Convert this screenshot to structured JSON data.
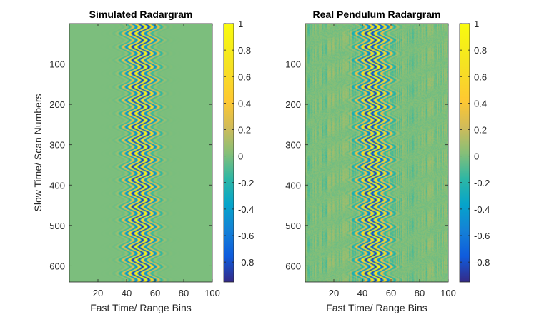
{
  "chart_data": [
    {
      "type": "heatmap",
      "title": "Simulated Radargram",
      "xlabel": "Fast Time/ Range Bins",
      "ylabel": "Slow Time/ Scan Numbers",
      "xlim": [
        0,
        100
      ],
      "ylim": [
        0,
        640
      ],
      "y_direction": "reversed",
      "xticks": [
        "20",
        "40",
        "60",
        "80",
        "100"
      ],
      "yticks": [
        "100",
        "200",
        "300",
        "400",
        "500",
        "600"
      ],
      "colormap": "parula",
      "clim": [
        -0.95,
        1
      ],
      "colorbar_ticks": [
        "1",
        "0.8",
        "0.6",
        "0.4",
        "0.2",
        "0",
        "-0.2",
        "-0.4",
        "-0.6",
        "-0.8"
      ],
      "signal": {
        "center_bin": 50,
        "sway_bins": 3.5,
        "scans_per_cycle": 33,
        "stripe_period_bins": 4.5,
        "envelope_width_bins": 6,
        "background_value": 0,
        "noise": 0
      }
    },
    {
      "type": "heatmap",
      "title": "Real Pendulum Radargram",
      "xlabel": "Fast Time/ Range Bins",
      "ylabel": "",
      "xlim": [
        0,
        100
      ],
      "ylim": [
        0,
        640
      ],
      "y_direction": "reversed",
      "xticks": [
        "20",
        "40",
        "60",
        "80",
        "100"
      ],
      "yticks": [
        "100",
        "200",
        "300",
        "400",
        "500",
        "600"
      ],
      "colormap": "parula",
      "clim": [
        -0.95,
        1
      ],
      "colorbar_ticks": [
        "1",
        "0.8",
        "0.6",
        "0.4",
        "0.2",
        "0",
        "-0.2",
        "-0.4",
        "-0.6",
        "-0.8"
      ],
      "signal": {
        "center_bin": 48,
        "sway_bins": 3.5,
        "scans_per_cycle": 33,
        "stripe_period_bins": 4.5,
        "envelope_width_bins": 6.5,
        "background_value": 0,
        "noise": 0.12
      }
    }
  ]
}
